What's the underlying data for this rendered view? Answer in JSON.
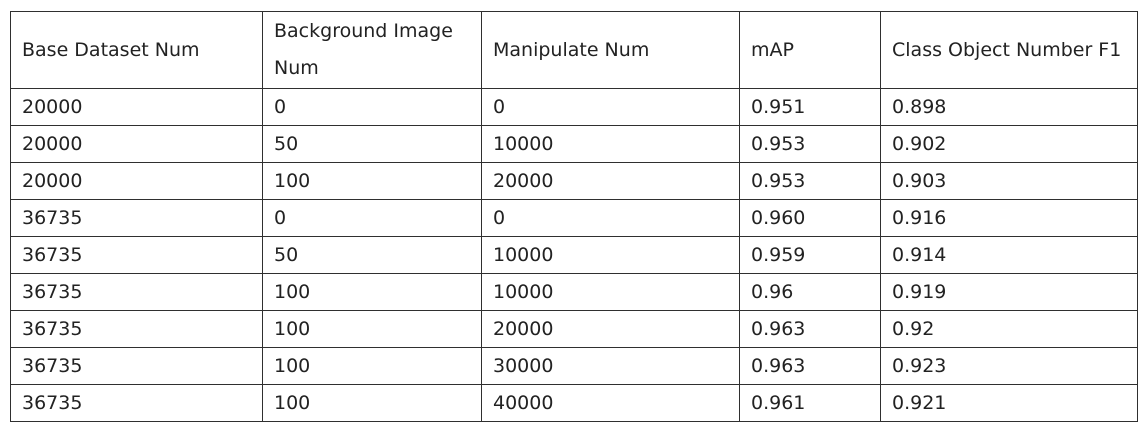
{
  "table": {
    "headers": [
      "Base Dataset Num",
      "Background Image Num",
      "Manipulate Num",
      "mAP",
      "Class Object Number F1"
    ],
    "rows": [
      [
        "20000",
        "0",
        "0",
        "0.951",
        "0.898"
      ],
      [
        "20000",
        "50",
        "10000",
        "0.953",
        "0.902"
      ],
      [
        "20000",
        "100",
        "20000",
        "0.953",
        "0.903"
      ],
      [
        "36735",
        "0",
        "0",
        "0.960",
        "0.916"
      ],
      [
        "36735",
        "50",
        "10000",
        "0.959",
        "0.914"
      ],
      [
        "36735",
        "100",
        "10000",
        "0.96",
        "0.919"
      ],
      [
        "36735",
        "100",
        "20000",
        "0.963",
        "0.92"
      ],
      [
        "36735",
        "100",
        "30000",
        "0.963",
        "0.923"
      ],
      [
        "36735",
        "100",
        "40000",
        "0.961",
        "0.921"
      ]
    ]
  }
}
